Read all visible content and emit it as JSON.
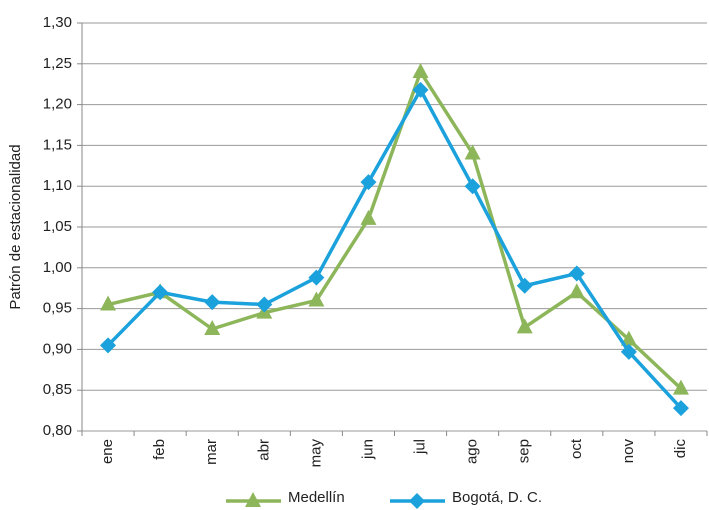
{
  "chart_data": {
    "type": "line",
    "y_label": "Patrón de estacionalidad",
    "categories": [
      "ene",
      "feb",
      "mar",
      "abr",
      "may",
      "jun",
      "jul",
      "ago",
      "sep",
      "oct",
      "nov",
      "dic"
    ],
    "series": [
      {
        "name": "Medellín",
        "color": "#8db65b",
        "marker": "triangle",
        "values": [
          0.955,
          0.97,
          0.925,
          0.945,
          0.96,
          1.06,
          1.24,
          1.14,
          0.927,
          0.97,
          0.912,
          0.852
        ]
      },
      {
        "name": "Bogotá, D. C.",
        "color": "#1ba1dc",
        "marker": "diamond",
        "values": [
          0.905,
          0.97,
          0.958,
          0.955,
          0.988,
          1.105,
          1.218,
          1.1,
          0.978,
          0.993,
          0.897,
          0.828
        ]
      }
    ],
    "ylim": [
      0.8,
      1.3
    ],
    "yticks": [
      {
        "value": 0.8,
        "label": "0,80"
      },
      {
        "value": 0.85,
        "label": "0,85"
      },
      {
        "value": 0.9,
        "label": "0,90"
      },
      {
        "value": 0.95,
        "label": "0,95"
      },
      {
        "value": 1.0,
        "label": "1,00"
      },
      {
        "value": 1.05,
        "label": "1,05"
      },
      {
        "value": 1.1,
        "label": "1,10"
      },
      {
        "value": 1.15,
        "label": "1,15"
      },
      {
        "value": 1.2,
        "label": "1,20"
      },
      {
        "value": 1.25,
        "label": "1,25"
      },
      {
        "value": 1.3,
        "label": "1,30"
      }
    ],
    "grid": true,
    "legend": "bottom"
  }
}
